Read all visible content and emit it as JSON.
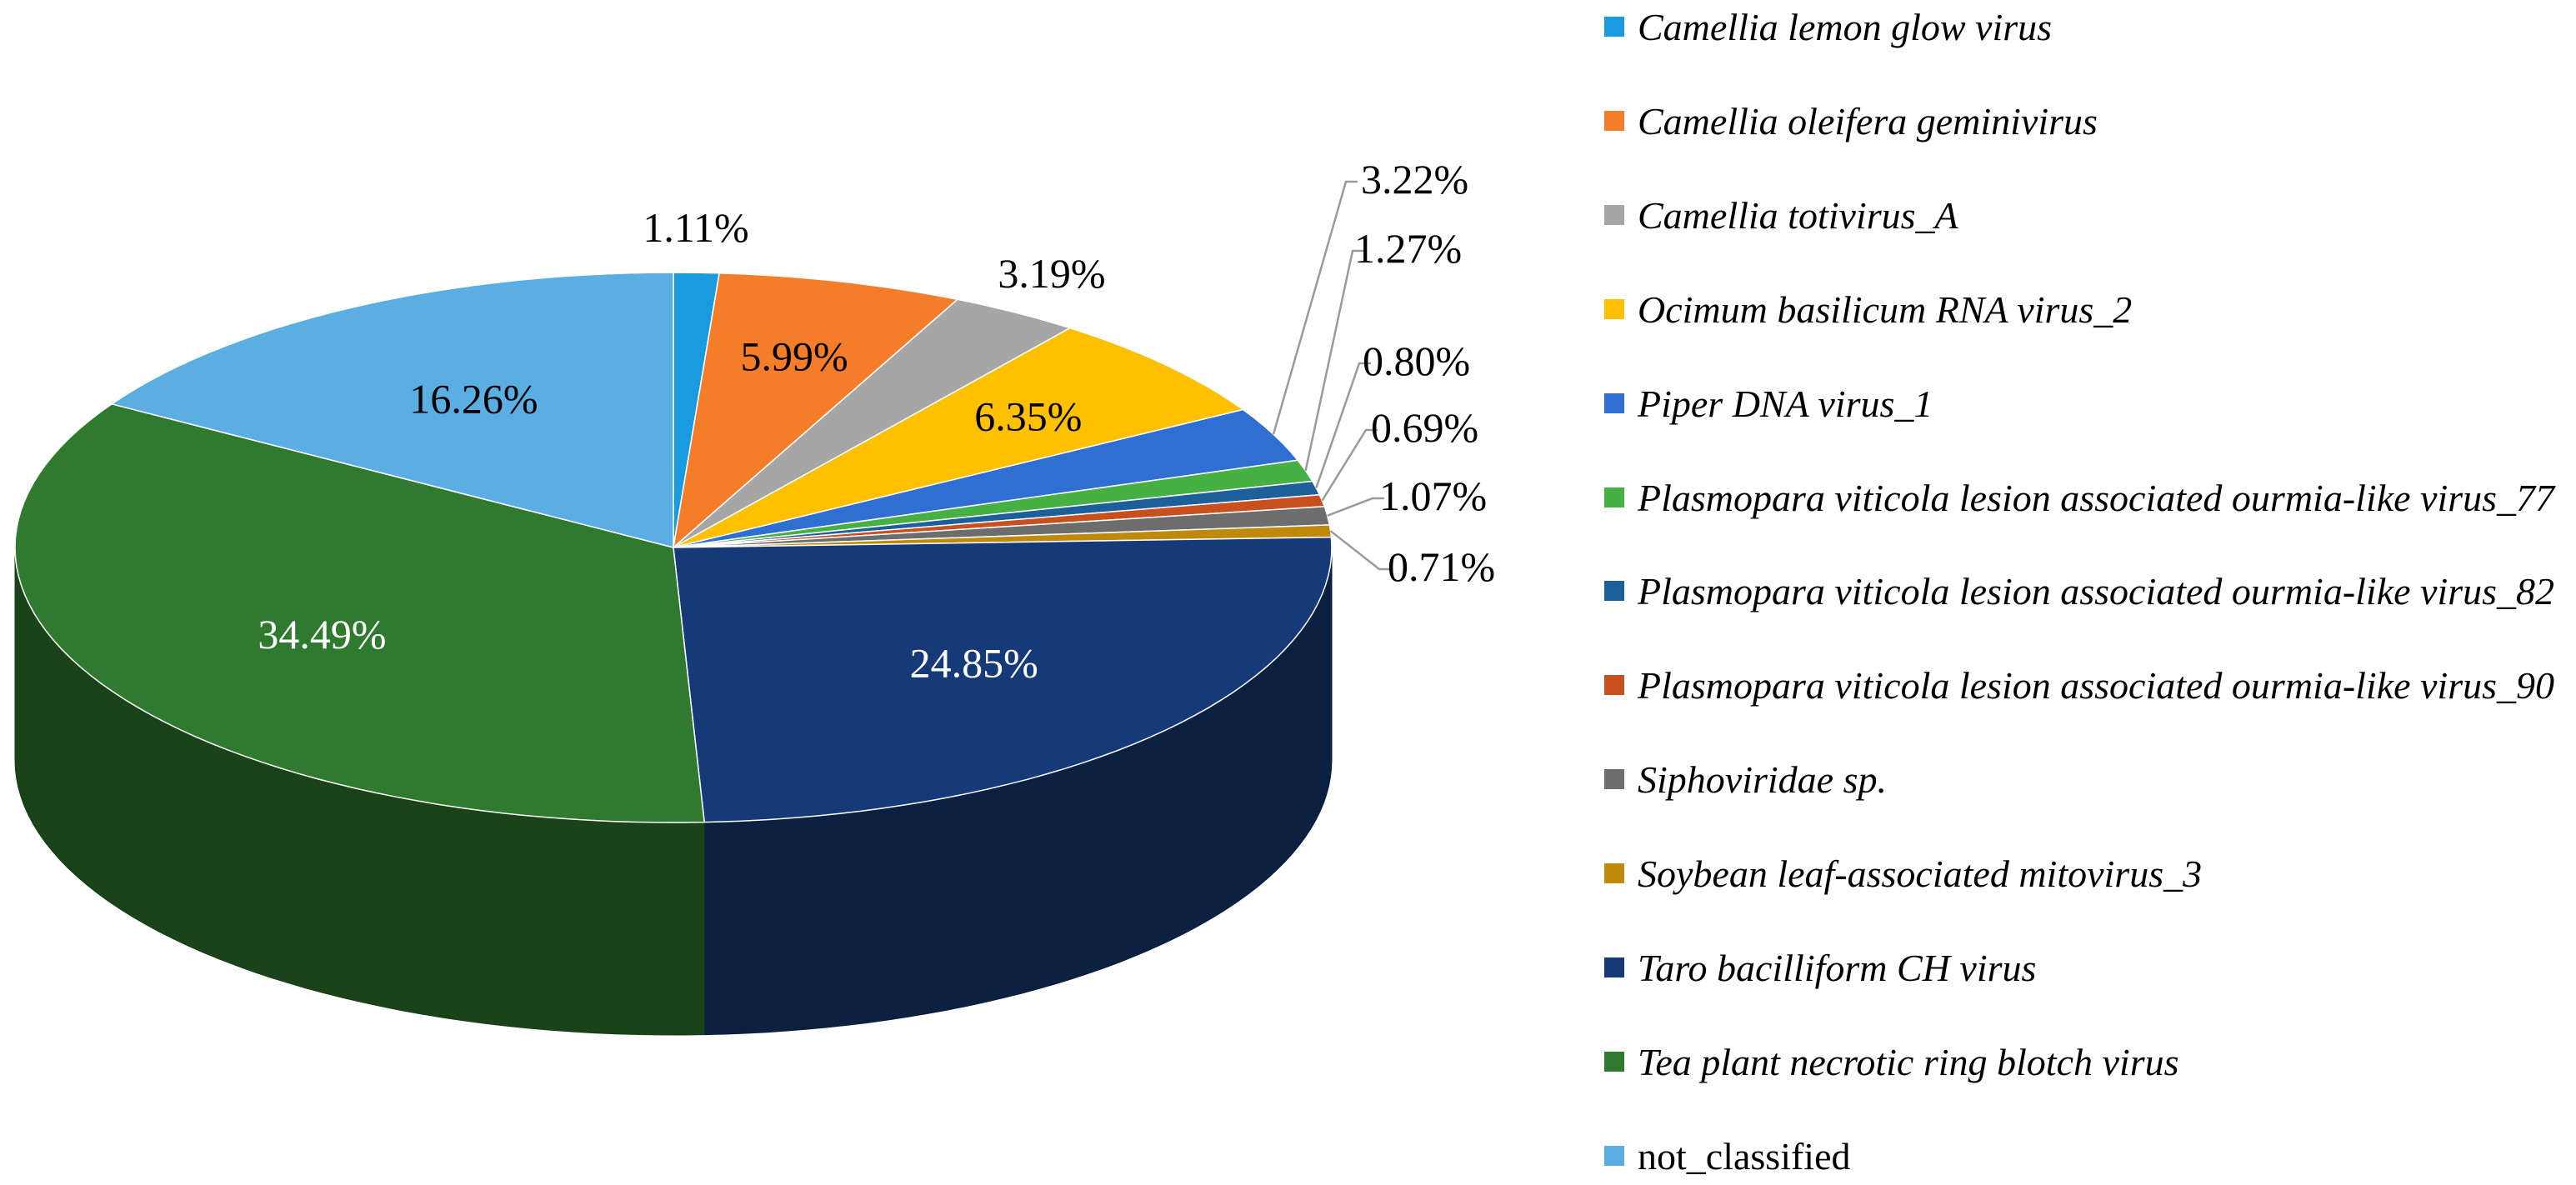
{
  "chart_data": {
    "type": "pie",
    "title": "",
    "slices": [
      {
        "name": "Camellia lemon glow virus",
        "value": 1.11,
        "label": "1.11%",
        "color": "#1a9be0"
      },
      {
        "name": "Camellia oleifera geminivirus",
        "value": 5.99,
        "label": "5.99%",
        "color": "#f47d2a"
      },
      {
        "name": "Camellia totivirus_A",
        "value": 3.19,
        "label": "3.19%",
        "color": "#a6a6a6"
      },
      {
        "name": "Ocimum basilicum RNA virus_2",
        "value": 6.35,
        "label": "6.35%",
        "color": "#ffc000"
      },
      {
        "name": "Piper DNA virus_1",
        "value": 3.22,
        "label": "3.22%",
        "color": "#2e6fd1"
      },
      {
        "name": "Plasmopara viticola lesion associated ourmia-like virus_77",
        "value": 1.27,
        "label": "1.27%",
        "color": "#46b045"
      },
      {
        "name": "Plasmopara viticola lesion associated ourmia-like virus_82",
        "value": 0.8,
        "label": "0.80%",
        "color": "#1d5f9a"
      },
      {
        "name": "Plasmopara viticola lesion associated ourmia-like virus_90",
        "value": 0.69,
        "label": "0.69%",
        "color": "#c8501f"
      },
      {
        "name": "Siphoviridae sp.",
        "value": 1.07,
        "label": "1.07%",
        "color": "#6d6d6d"
      },
      {
        "name": "Soybean leaf-associated mitovirus_3",
        "value": 0.71,
        "label": "0.71%",
        "color": "#bf8a0b"
      },
      {
        "name": "Taro bacilliform CH virus",
        "value": 24.85,
        "label": "24.85%",
        "color": "#163a78"
      },
      {
        "name": "Tea plant necrotic ring blotch virus",
        "value": 34.49,
        "label": "34.49%",
        "color": "#2f7a2f"
      },
      {
        "name": "not_classified",
        "value": 16.26,
        "label": "16.26%",
        "color": "#5aaee2"
      }
    ],
    "legend_position": "right"
  }
}
